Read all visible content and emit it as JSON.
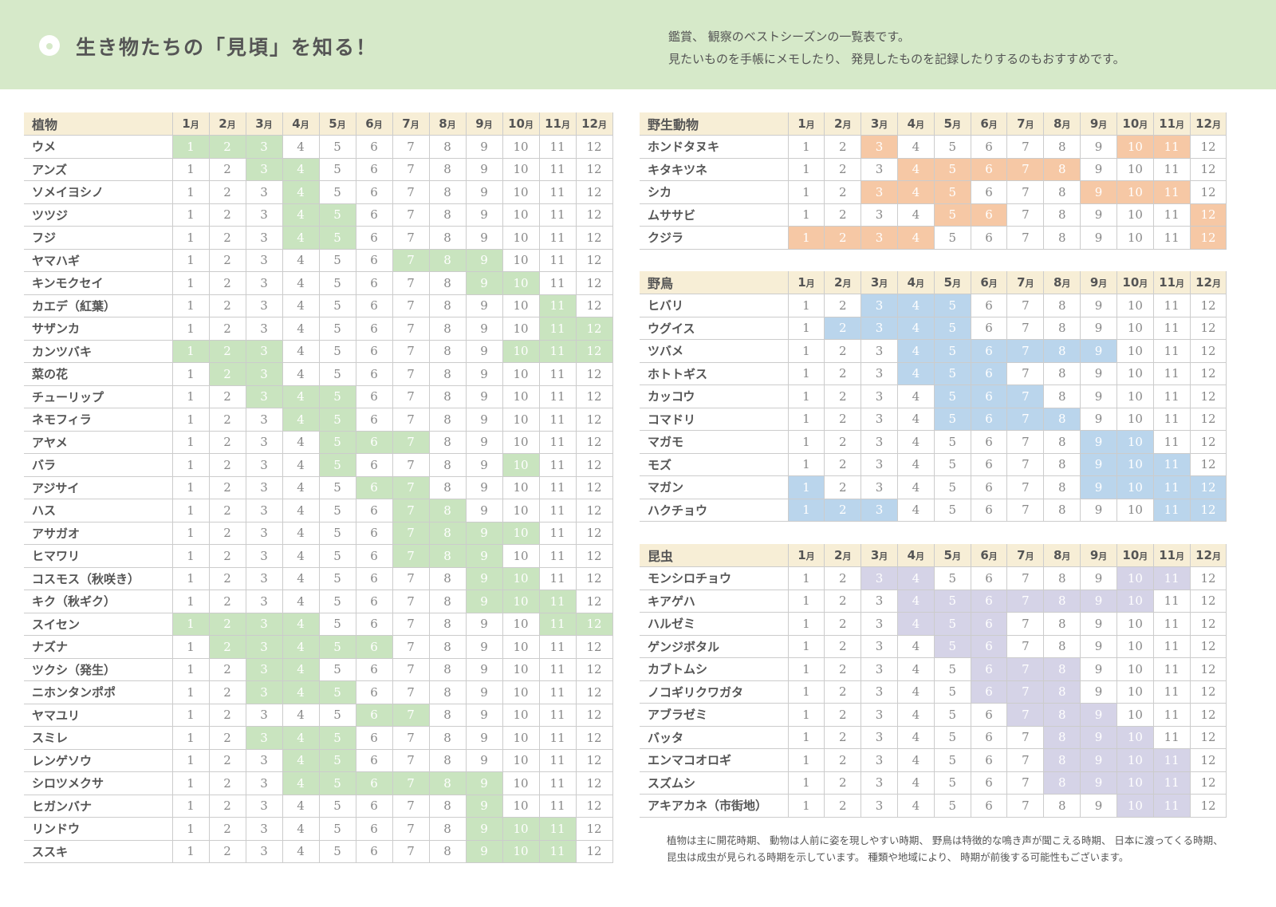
{
  "header": {
    "title": "生き物たちの「見頃」を知る！",
    "description": [
      "鑑賞、 観察のベストシーズンの一覧表です。",
      "見たいものを手帳にメモしたり、 発見したものを記録したりするのもおすすめです。"
    ]
  },
  "months": [
    1,
    2,
    3,
    4,
    5,
    6,
    7,
    8,
    9,
    10,
    11,
    12
  ],
  "month_unit": "月",
  "sections": [
    {
      "title": "植物",
      "color": "#c9e4bf",
      "rows": [
        {
          "name": "ウメ",
          "season": [
            1,
            2,
            3
          ]
        },
        {
          "name": "アンズ",
          "season": [
            3,
            4
          ]
        },
        {
          "name": "ソメイヨシノ",
          "season": [
            4
          ]
        },
        {
          "name": "ツツジ",
          "season": [
            4,
            5
          ]
        },
        {
          "name": "フジ",
          "season": [
            4,
            5
          ]
        },
        {
          "name": "ヤマハギ",
          "season": [
            7,
            8,
            9
          ]
        },
        {
          "name": "キンモクセイ",
          "season": [
            9,
            10
          ]
        },
        {
          "name": "カエデ（紅葉）",
          "season": [
            11
          ]
        },
        {
          "name": "サザンカ",
          "season": [
            11,
            12
          ]
        },
        {
          "name": "カンツバキ",
          "season": [
            1,
            2,
            3,
            10,
            11,
            12
          ]
        },
        {
          "name": "菜の花",
          "season": [
            2,
            3
          ]
        },
        {
          "name": "チューリップ",
          "season": [
            3,
            4,
            5
          ]
        },
        {
          "name": "ネモフィラ",
          "season": [
            4,
            5
          ]
        },
        {
          "name": "アヤメ",
          "season": [
            5,
            6,
            7
          ]
        },
        {
          "name": "バラ",
          "season": [
            5,
            10
          ]
        },
        {
          "name": "アジサイ",
          "season": [
            6,
            7
          ]
        },
        {
          "name": "ハス",
          "season": [
            7,
            8
          ]
        },
        {
          "name": "アサガオ",
          "season": [
            7,
            8,
            9,
            10
          ]
        },
        {
          "name": "ヒマワリ",
          "season": [
            7,
            8,
            9
          ]
        },
        {
          "name": "コスモス（秋咲き）",
          "season": [
            9,
            10
          ]
        },
        {
          "name": "キク（秋ギク）",
          "season": [
            9,
            10,
            11
          ]
        },
        {
          "name": "スイセン",
          "season": [
            1,
            2,
            3,
            4,
            11,
            12
          ]
        },
        {
          "name": "ナズナ",
          "season": [
            2,
            3,
            4,
            5,
            6
          ]
        },
        {
          "name": "ツクシ（発生）",
          "season": [
            3,
            4
          ]
        },
        {
          "name": "ニホンタンポポ",
          "season": [
            3,
            4,
            5
          ]
        },
        {
          "name": "ヤマユリ",
          "season": [
            6,
            7
          ]
        },
        {
          "name": "スミレ",
          "season": [
            3,
            4,
            5
          ]
        },
        {
          "name": "レンゲソウ",
          "season": [
            4,
            5
          ]
        },
        {
          "name": "シロツメクサ",
          "season": [
            4,
            5,
            6,
            7,
            8,
            9
          ]
        },
        {
          "name": "ヒガンバナ",
          "season": [
            9
          ]
        },
        {
          "name": "リンドウ",
          "season": [
            9,
            10,
            11
          ]
        },
        {
          "name": "ススキ",
          "season": [
            9,
            10,
            11
          ]
        }
      ]
    },
    {
      "title": "野生動物",
      "color": "#f6c8a5",
      "rows": [
        {
          "name": "ホンドタヌキ",
          "season": [
            3,
            10,
            11
          ]
        },
        {
          "name": "キタキツネ",
          "season": [
            4,
            5,
            6,
            7,
            8
          ]
        },
        {
          "name": "シカ",
          "season": [
            3,
            4,
            5,
            9,
            10,
            11
          ]
        },
        {
          "name": "ムササビ",
          "season": [
            5,
            6,
            12
          ]
        },
        {
          "name": "クジラ",
          "season": [
            1,
            2,
            3,
            4,
            12
          ]
        }
      ]
    },
    {
      "title": "野鳥",
      "color": "#bad5ec",
      "rows": [
        {
          "name": "ヒバリ",
          "season": [
            3,
            4,
            5
          ]
        },
        {
          "name": "ウグイス",
          "season": [
            2,
            3,
            4,
            5
          ]
        },
        {
          "name": "ツバメ",
          "season": [
            4,
            5,
            6,
            7,
            8,
            9
          ]
        },
        {
          "name": "ホトトギス",
          "season": [
            4,
            5,
            6
          ]
        },
        {
          "name": "カッコウ",
          "season": [
            5,
            6,
            7
          ]
        },
        {
          "name": "コマドリ",
          "season": [
            5,
            6,
            7,
            8
          ]
        },
        {
          "name": "マガモ",
          "season": [
            9,
            10
          ]
        },
        {
          "name": "モズ",
          "season": [
            9,
            10,
            11
          ]
        },
        {
          "name": "マガン",
          "season": [
            1,
            9,
            10,
            11,
            12
          ]
        },
        {
          "name": "ハクチョウ",
          "season": [
            1,
            2,
            3,
            11,
            12
          ]
        }
      ]
    },
    {
      "title": "昆虫",
      "color": "#d5d3e7",
      "rows": [
        {
          "name": "モンシロチョウ",
          "season": [
            3,
            4,
            10,
            11
          ]
        },
        {
          "name": "キアゲハ",
          "season": [
            4,
            5,
            6,
            7,
            8,
            9,
            10
          ]
        },
        {
          "name": "ハルゼミ",
          "season": [
            4,
            5,
            6
          ]
        },
        {
          "name": "ゲンジボタル",
          "season": [
            5,
            6
          ]
        },
        {
          "name": "カブトムシ",
          "season": [
            6,
            7,
            8
          ]
        },
        {
          "name": "ノコギリクワガタ",
          "season": [
            6,
            7,
            8
          ]
        },
        {
          "name": "アブラゼミ",
          "season": [
            7,
            8,
            9
          ]
        },
        {
          "name": "バッタ",
          "season": [
            8,
            9,
            10
          ]
        },
        {
          "name": "エンマコオロギ",
          "season": [
            8,
            9,
            10,
            11
          ]
        },
        {
          "name": "スズムシ",
          "season": [
            8,
            9,
            10,
            11
          ]
        },
        {
          "name": "アキアカネ（市街地）",
          "season": [
            10,
            11
          ]
        }
      ]
    }
  ],
  "footnote": "植物は主に開花時期、 動物は人前に姿を現しやすい時期、 野鳥は特徴的な鳴き声が聞こえる時期、 日本に渡ってくる時期、 昆虫は成虫が見られる時期を示しています。 種類や地域により、 時期が前後する可能性もございます。"
}
